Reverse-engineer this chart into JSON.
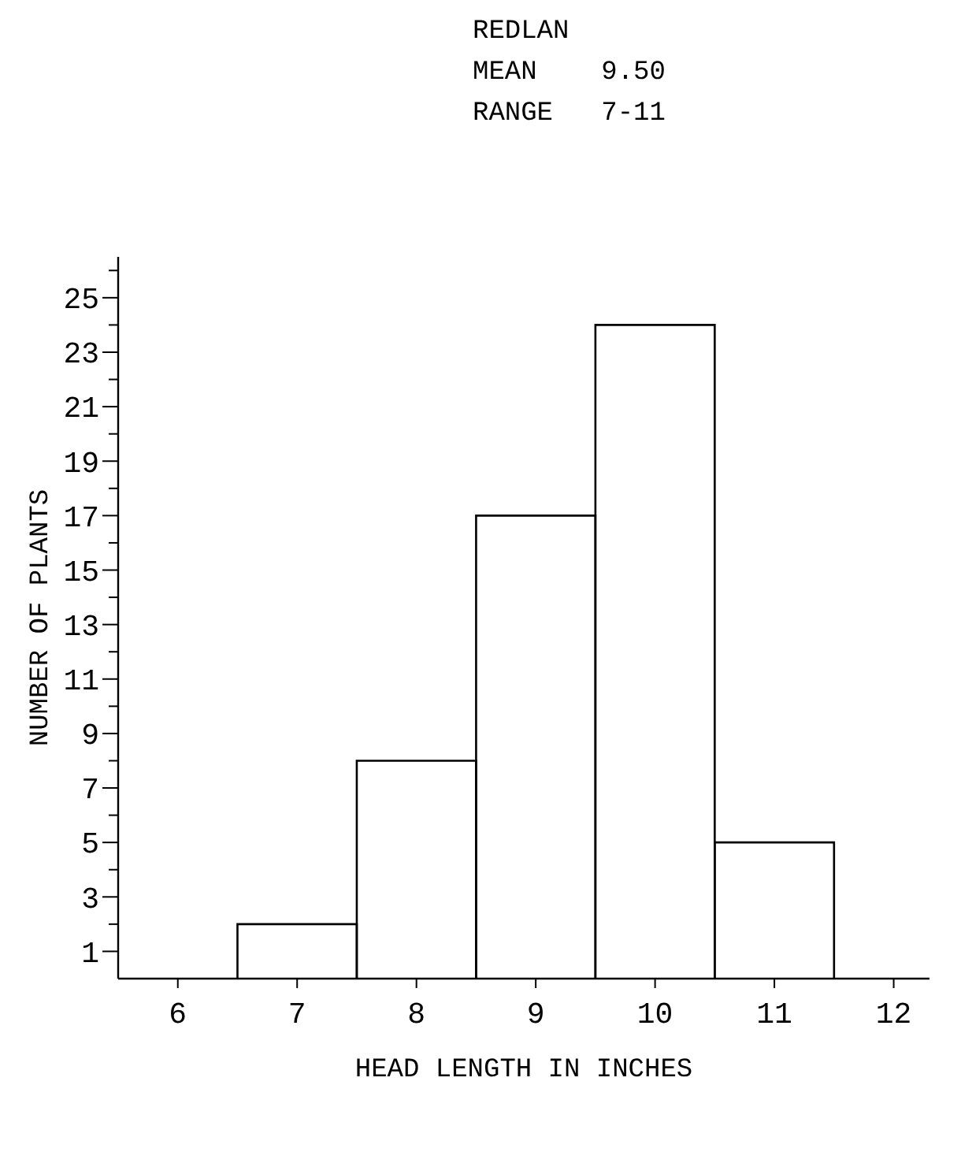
{
  "chart_data": {
    "type": "histogram",
    "xlabel": "HEAD LENGTH IN INCHES",
    "ylabel": "NUMBER OF PLANTS",
    "annotations": [
      "REDLAN",
      "MEAN    9.50",
      "RANGE   7-11"
    ],
    "bins": [
      6.5,
      7.5,
      8.5,
      9.5,
      10.5,
      11.5
    ],
    "values": [
      2,
      8,
      17,
      24,
      5
    ],
    "color": "#000000",
    "xlim": [
      5.5,
      12.3
    ],
    "xticks": [
      6,
      7,
      8,
      9,
      10,
      11,
      12
    ],
    "ylim": [
      0,
      26.5
    ],
    "yticks": [
      1,
      {
        "value": 2,
        "label": null
      },
      3,
      {
        "value": 4,
        "label": null
      },
      5,
      {
        "value": 6,
        "label": null
      },
      7,
      {
        "value": 8,
        "label": null
      },
      9,
      {
        "value": 10,
        "label": null
      },
      11,
      {
        "value": 12,
        "label": null
      },
      13,
      {
        "value": 14,
        "label": null
      },
      15,
      {
        "value": 16,
        "label": null
      },
      17,
      {
        "value": 18,
        "label": null
      },
      19,
      {
        "value": 20,
        "label": null
      },
      21,
      {
        "value": 22,
        "label": null
      },
      23,
      {
        "value": 24,
        "label": null
      },
      25,
      {
        "value": 26,
        "label": null
      }
    ],
    "grid": false
  }
}
